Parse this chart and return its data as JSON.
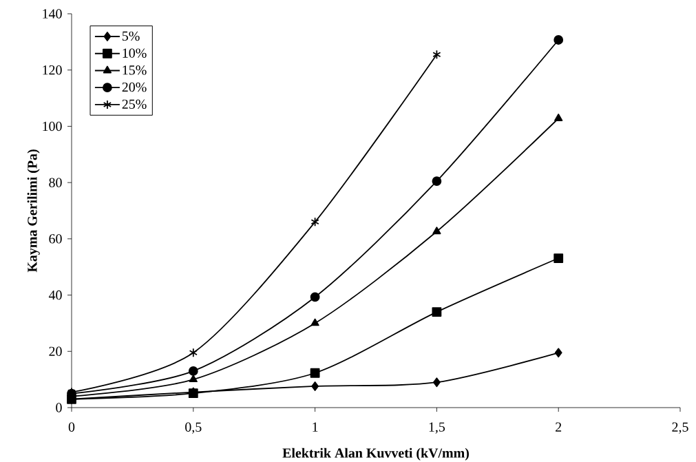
{
  "chart_data": {
    "type": "line",
    "xlabel": "Elektrik Alan Kuvveti (kV/mm)",
    "ylabel": "Kayma Gerilimi (Pa)",
    "x": [
      0,
      0.5,
      1,
      1.5,
      2
    ],
    "series": [
      {
        "name": "5%",
        "color": "#000000",
        "marker": "diamond",
        "values": [
          3,
          5.5,
          7.6,
          9,
          19.5
        ]
      },
      {
        "name": "10%",
        "color": "#000000",
        "marker": "square",
        "values": [
          3,
          5.1,
          12.3,
          34,
          53.1
        ]
      },
      {
        "name": "15%",
        "color": "#000000",
        "marker": "triangle",
        "values": [
          4,
          10,
          30,
          62.6,
          102.8
        ]
      },
      {
        "name": "20%",
        "color": "#000000",
        "marker": "circle",
        "values": [
          5,
          13,
          39.3,
          80.5,
          130.7
        ]
      },
      {
        "name": "25%",
        "color": "#000000",
        "marker": "cross",
        "x": [
          0,
          0.5,
          1,
          1.5
        ],
        "values": [
          5.5,
          19.5,
          66,
          125.5
        ]
      }
    ],
    "xlim": [
      0,
      2.5
    ],
    "ylim": [
      0,
      140
    ],
    "xticks": [
      0,
      {
        "value": 0.5,
        "label": "0,5"
      },
      1,
      {
        "value": 1.5,
        "label": "1,5"
      },
      2,
      {
        "value": 2.5,
        "label": "2,5"
      }
    ],
    "yticks": [
      0,
      20,
      40,
      60,
      80,
      100,
      120,
      140
    ],
    "grid": false,
    "legend": "top left",
    "line_style": "solid"
  }
}
